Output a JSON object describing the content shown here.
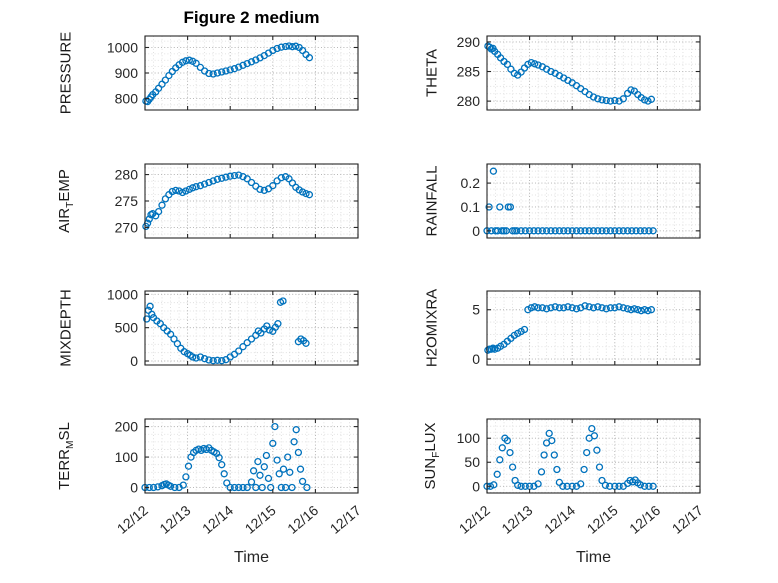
{
  "figure": {
    "title": "Figure 2 medium",
    "xlabel": "Time",
    "marker_color": "#0072BD",
    "axis_color": "#262626",
    "grid_major_color": "#b3b3b3",
    "grid_minor_color": "#d9d9d9"
  },
  "chart_data": [
    {
      "id": "pressure",
      "type": "scatter",
      "ylabel": "PRESSURE",
      "ylabel_segments": [
        {
          "text": "PRESSURE",
          "sub": false
        }
      ],
      "ylim": [
        755,
        1045
      ],
      "yticks": [
        800,
        900,
        1000
      ],
      "xlim": [
        12,
        17
      ],
      "xticks": [
        12,
        13,
        14,
        15,
        16,
        17
      ],
      "show_xtick_labels": false,
      "x": [
        12.02,
        12.06,
        12.1,
        12.14,
        12.18,
        12.25,
        12.32,
        12.4,
        12.48,
        12.56,
        12.64,
        12.72,
        12.8,
        12.88,
        12.96,
        13.04,
        13.12,
        13.2,
        13.3,
        13.4,
        13.5,
        13.6,
        13.7,
        13.8,
        13.9,
        14.0,
        14.1,
        14.2,
        14.3,
        14.4,
        14.5,
        14.6,
        14.7,
        14.8,
        14.9,
        15.0,
        15.1,
        15.2,
        15.3,
        15.38,
        15.46,
        15.54,
        15.62,
        15.7,
        15.78,
        15.86
      ],
      "y": [
        790,
        788,
        797,
        806,
        815,
        826,
        840,
        856,
        872,
        890,
        906,
        920,
        932,
        942,
        948,
        950,
        946,
        938,
        922,
        908,
        898,
        896,
        900,
        904,
        908,
        912,
        917,
        923,
        930,
        937,
        944,
        951,
        959,
        968,
        978,
        988,
        996,
        1001,
        1004,
        1006,
        1003,
        1005,
        1000,
        988,
        972,
        960
      ]
    },
    {
      "id": "theta",
      "type": "scatter",
      "ylabel": "THETA",
      "ylabel_segments": [
        {
          "text": "THETA",
          "sub": false
        }
      ],
      "ylim": [
        278.5,
        291
      ],
      "yticks": [
        280,
        285,
        290
      ],
      "xlim": [
        12,
        17
      ],
      "xticks": [
        12,
        13,
        14,
        15,
        16,
        17
      ],
      "show_xtick_labels": false,
      "x": [
        12.02,
        12.06,
        12.1,
        12.14,
        12.18,
        12.25,
        12.32,
        12.4,
        12.48,
        12.56,
        12.64,
        12.72,
        12.8,
        12.88,
        12.96,
        13.04,
        13.12,
        13.2,
        13.3,
        13.4,
        13.5,
        13.6,
        13.7,
        13.8,
        13.9,
        14.0,
        14.1,
        14.2,
        14.3,
        14.4,
        14.5,
        14.6,
        14.7,
        14.8,
        14.9,
        15.0,
        15.1,
        15.2,
        15.3,
        15.38,
        15.46,
        15.54,
        15.62,
        15.7,
        15.78,
        15.86
      ],
      "y": [
        289.3,
        289.1,
        288.8,
        288.9,
        288.4,
        287.9,
        287.3,
        286.7,
        286.2,
        285.4,
        284.7,
        284.4,
        284.9,
        285.6,
        286.2,
        286.5,
        286.3,
        286.1,
        285.8,
        285.4,
        285.0,
        284.7,
        284.3,
        283.9,
        283.5,
        283.1,
        282.6,
        282.1,
        281.6,
        281.1,
        280.7,
        280.4,
        280.2,
        280.1,
        280.0,
        280.1,
        280.0,
        280.4,
        281.3,
        281.9,
        281.7,
        281.1,
        280.6,
        280.2,
        280.0,
        280.3
      ]
    },
    {
      "id": "airtemp",
      "type": "scatter",
      "ylabel": "AIR_TEMP",
      "ylabel_segments": [
        {
          "text": "AIR",
          "sub": false
        },
        {
          "text": "T",
          "sub": true
        },
        {
          "text": "EMP",
          "sub": false
        }
      ],
      "ylim": [
        268,
        282
      ],
      "yticks": [
        270,
        275,
        280
      ],
      "xlim": [
        12,
        17
      ],
      "xticks": [
        12,
        13,
        14,
        15,
        16,
        17
      ],
      "show_xtick_labels": false,
      "x": [
        12.02,
        12.06,
        12.1,
        12.14,
        12.18,
        12.25,
        12.32,
        12.4,
        12.48,
        12.56,
        12.64,
        12.72,
        12.8,
        12.88,
        12.96,
        13.04,
        13.12,
        13.2,
        13.3,
        13.4,
        13.5,
        13.6,
        13.7,
        13.8,
        13.9,
        14.0,
        14.1,
        14.2,
        14.3,
        14.4,
        14.5,
        14.6,
        14.7,
        14.8,
        14.9,
        15.0,
        15.1,
        15.2,
        15.3,
        15.38,
        15.46,
        15.54,
        15.62,
        15.7,
        15.78,
        15.86
      ],
      "y": [
        270.2,
        270.8,
        271.6,
        272.4,
        272.6,
        272.2,
        273.0,
        274.2,
        275.4,
        276.2,
        276.8,
        277.0,
        276.9,
        276.6,
        276.9,
        277.2,
        277.5,
        277.7,
        277.9,
        278.2,
        278.5,
        278.8,
        279.1,
        279.3,
        279.5,
        279.7,
        279.8,
        279.9,
        279.6,
        279.2,
        278.5,
        277.8,
        277.2,
        277.0,
        277.3,
        277.9,
        278.8,
        279.4,
        279.6,
        279.2,
        278.4,
        277.6,
        277.1,
        276.7,
        276.4,
        276.2
      ]
    },
    {
      "id": "rainfall",
      "type": "scatter",
      "ylabel": "RAINFALL",
      "ylabel_segments": [
        {
          "text": "RAINFALL",
          "sub": false
        }
      ],
      "ylim": [
        -0.03,
        0.28
      ],
      "yticks": [
        0,
        0.1,
        0.2
      ],
      "xlim": [
        12,
        17
      ],
      "xticks": [
        12,
        13,
        14,
        15,
        16,
        17
      ],
      "show_xtick_labels": false,
      "x": [
        12.0,
        12.05,
        12.1,
        12.15,
        12.2,
        12.25,
        12.3,
        12.35,
        12.4,
        12.45,
        12.5,
        12.55,
        12.6,
        12.65,
        12.7,
        12.8,
        12.9,
        13.0,
        13.1,
        13.2,
        13.3,
        13.4,
        13.5,
        13.6,
        13.7,
        13.8,
        13.9,
        14.0,
        14.1,
        14.2,
        14.3,
        14.4,
        14.5,
        14.6,
        14.7,
        14.8,
        14.9,
        15.0,
        15.1,
        15.2,
        15.3,
        15.4,
        15.5,
        15.6,
        15.7,
        15.8,
        15.9
      ],
      "y": [
        0,
        0.1,
        0,
        0.25,
        0,
        0,
        0.1,
        0,
        0,
        0,
        0.1,
        0.1,
        0,
        0,
        0,
        0,
        0,
        0,
        0,
        0,
        0,
        0,
        0,
        0,
        0,
        0,
        0,
        0,
        0,
        0,
        0,
        0,
        0,
        0,
        0,
        0,
        0,
        0,
        0,
        0,
        0,
        0,
        0,
        0,
        0,
        0,
        0
      ]
    },
    {
      "id": "mixdepth",
      "type": "scatter",
      "ylabel": "MIXDEPTH",
      "ylabel_segments": [
        {
          "text": "MIXDEPTH",
          "sub": false
        }
      ],
      "ylim": [
        -60,
        1050
      ],
      "yticks": [
        0,
        500,
        1000
      ],
      "xlim": [
        12,
        17
      ],
      "xticks": [
        12,
        13,
        14,
        15,
        16,
        17
      ],
      "show_xtick_labels": false,
      "x": [
        12.04,
        12.08,
        12.12,
        12.16,
        12.2,
        12.28,
        12.36,
        12.44,
        12.52,
        12.6,
        12.68,
        12.76,
        12.84,
        12.92,
        13.0,
        13.06,
        13.12,
        13.2,
        13.3,
        13.4,
        13.5,
        13.6,
        13.7,
        13.8,
        13.9,
        14.0,
        14.1,
        14.2,
        14.3,
        14.4,
        14.5,
        14.6,
        14.66,
        14.72,
        14.8,
        14.86,
        14.92,
        15.0,
        15.06,
        15.12,
        15.18,
        15.24,
        15.6,
        15.66,
        15.72,
        15.78
      ],
      "y": [
        630,
        760,
        820,
        700,
        650,
        600,
        560,
        500,
        450,
        400,
        330,
        260,
        190,
        140,
        110,
        85,
        60,
        45,
        60,
        35,
        15,
        5,
        10,
        5,
        20,
        60,
        100,
        150,
        215,
        275,
        330,
        385,
        450,
        420,
        480,
        525,
        465,
        445,
        505,
        560,
        880,
        900,
        290,
        330,
        305,
        265
      ]
    },
    {
      "id": "h2omixra",
      "type": "scatter",
      "ylabel": "H2OMIXRA",
      "ylabel_segments": [
        {
          "text": "H2OMIXRA",
          "sub": false
        }
      ],
      "ylim": [
        -0.6,
        6.9
      ],
      "yticks": [
        0,
        5
      ],
      "xlim": [
        12,
        17
      ],
      "xticks": [
        12,
        13,
        14,
        15,
        16,
        17
      ],
      "show_xtick_labels": false,
      "x": [
        12.02,
        12.06,
        12.1,
        12.14,
        12.18,
        12.25,
        12.32,
        12.4,
        12.48,
        12.56,
        12.64,
        12.72,
        12.8,
        12.88,
        12.96,
        13.04,
        13.12,
        13.2,
        13.3,
        13.4,
        13.5,
        13.6,
        13.7,
        13.8,
        13.9,
        14.0,
        14.1,
        14.2,
        14.3,
        14.4,
        14.5,
        14.6,
        14.7,
        14.8,
        14.9,
        15.0,
        15.1,
        15.2,
        15.3,
        15.38,
        15.46,
        15.54,
        15.62,
        15.7,
        15.78,
        15.86
      ],
      "y": [
        0.9,
        1.0,
        1.0,
        1.1,
        1.0,
        1.1,
        1.3,
        1.5,
        1.8,
        2.1,
        2.4,
        2.6,
        2.8,
        3.0,
        5.0,
        5.2,
        5.3,
        5.2,
        5.2,
        5.1,
        5.2,
        5.3,
        5.2,
        5.2,
        5.3,
        5.2,
        5.1,
        5.2,
        5.4,
        5.3,
        5.2,
        5.3,
        5.2,
        5.1,
        5.2,
        5.2,
        5.3,
        5.2,
        5.1,
        5.0,
        5.1,
        5.0,
        4.9,
        5.0,
        4.9,
        5.0
      ]
    },
    {
      "id": "terrmsl",
      "type": "scatter",
      "ylabel": "TERR_MSL",
      "ylabel_segments": [
        {
          "text": "TERR",
          "sub": false
        },
        {
          "text": "M",
          "sub": true
        },
        {
          "text": "SL",
          "sub": false
        }
      ],
      "ylim": [
        -18,
        225
      ],
      "yticks": [
        0,
        100,
        200
      ],
      "xlim": [
        12,
        17
      ],
      "xticks": [
        12,
        13,
        14,
        15,
        16,
        17
      ],
      "xtick_labels": [
        "12/12",
        "12/13",
        "12/14",
        "12/15",
        "12/16",
        "12/17"
      ],
      "show_xtick_labels": true,
      "x": [
        12.0,
        12.1,
        12.2,
        12.3,
        12.4,
        12.45,
        12.5,
        12.55,
        12.6,
        12.7,
        12.8,
        12.9,
        12.96,
        13.02,
        13.08,
        13.14,
        13.2,
        13.26,
        13.32,
        13.38,
        13.44,
        13.5,
        13.56,
        13.62,
        13.68,
        13.74,
        13.8,
        13.86,
        13.92,
        14.0,
        14.1,
        14.2,
        14.3,
        14.4,
        14.5,
        14.55,
        14.6,
        14.65,
        14.7,
        14.75,
        14.8,
        14.85,
        14.9,
        14.95,
        15.0,
        15.05,
        15.1,
        15.15,
        15.2,
        15.25,
        15.3,
        15.35,
        15.4,
        15.45,
        15.5,
        15.55,
        15.6,
        15.65,
        15.7,
        15.8
      ],
      "y": [
        0,
        0,
        0,
        2,
        6,
        10,
        12,
        8,
        4,
        0,
        0,
        8,
        35,
        70,
        100,
        115,
        122,
        126,
        122,
        128,
        125,
        130,
        122,
        117,
        112,
        98,
        75,
        45,
        15,
        0,
        0,
        0,
        0,
        0,
        18,
        55,
        0,
        85,
        40,
        0,
        68,
        105,
        30,
        0,
        145,
        200,
        90,
        45,
        0,
        60,
        0,
        100,
        50,
        0,
        150,
        190,
        115,
        60,
        20,
        0
      ]
    },
    {
      "id": "sunflux",
      "type": "scatter",
      "ylabel": "SUN_FLUX",
      "ylabel_segments": [
        {
          "text": "SUN",
          "sub": false
        },
        {
          "text": "F",
          "sub": true
        },
        {
          "text": "LUX",
          "sub": false
        }
      ],
      "ylim": [
        -14,
        140
      ],
      "yticks": [
        0,
        50,
        100
      ],
      "xlim": [
        12,
        17
      ],
      "xticks": [
        12,
        13,
        14,
        15,
        16,
        17
      ],
      "xtick_labels": [
        "12/12",
        "12/13",
        "12/14",
        "12/15",
        "12/16",
        "12/17"
      ],
      "show_xtick_labels": true,
      "x": [
        12.0,
        12.08,
        12.16,
        12.24,
        12.3,
        12.36,
        12.42,
        12.48,
        12.54,
        12.6,
        12.66,
        12.72,
        12.8,
        12.9,
        13.0,
        13.1,
        13.2,
        13.28,
        13.34,
        13.4,
        13.46,
        13.52,
        13.58,
        13.64,
        13.7,
        13.78,
        13.88,
        14.0,
        14.1,
        14.2,
        14.28,
        14.34,
        14.4,
        14.46,
        14.52,
        14.58,
        14.64,
        14.7,
        14.78,
        14.88,
        15.0,
        15.1,
        15.2,
        15.3,
        15.36,
        15.42,
        15.48,
        15.54,
        15.6,
        15.7,
        15.8,
        15.9
      ],
      "y": [
        0,
        0,
        3,
        25,
        55,
        80,
        100,
        95,
        70,
        40,
        12,
        2,
        0,
        0,
        0,
        0,
        5,
        30,
        65,
        90,
        110,
        95,
        65,
        35,
        8,
        0,
        0,
        0,
        0,
        5,
        35,
        70,
        100,
        120,
        105,
        75,
        40,
        12,
        2,
        0,
        0,
        0,
        0,
        6,
        12,
        9,
        13,
        7,
        3,
        0,
        0,
        0
      ]
    }
  ]
}
